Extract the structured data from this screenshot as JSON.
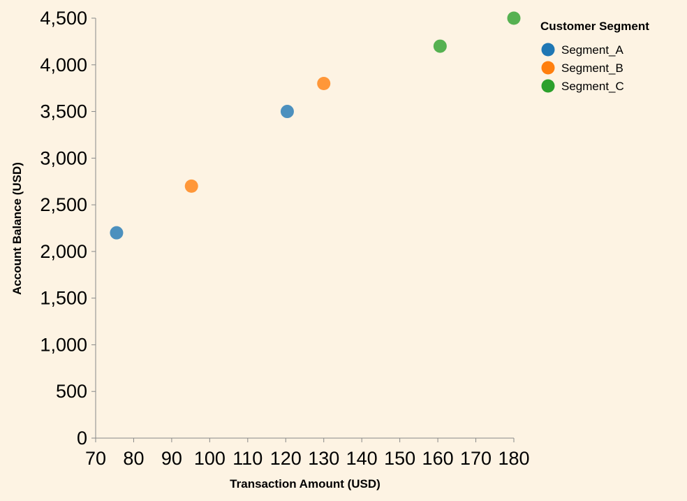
{
  "colors": {
    "background": "#fdf3e3",
    "axis": "#888888",
    "text": "#000000"
  },
  "chart_data": {
    "type": "scatter",
    "title": "",
    "xlabel": "Transaction Amount (USD)",
    "ylabel": "Account Balance (USD)",
    "xlim": [
      70,
      180
    ],
    "ylim": [
      0,
      4500
    ],
    "x_ticks": [
      70,
      80,
      90,
      100,
      110,
      120,
      130,
      140,
      150,
      160,
      170,
      180
    ],
    "x_tick_labels": [
      "70",
      "80",
      "90",
      "100",
      "110",
      "120",
      "130",
      "140",
      "150",
      "160",
      "170",
      "180"
    ],
    "y_ticks": [
      0,
      500,
      1000,
      1500,
      2000,
      2500,
      3000,
      3500,
      4000,
      4500
    ],
    "y_tick_labels": [
      "0",
      "500",
      "1,000",
      "1,500",
      "2,000",
      "2,500",
      "3,000",
      "3,500",
      "4,000",
      "4,500"
    ],
    "grid": false,
    "legend": {
      "title": "Customer Segment",
      "placement": "top-right"
    },
    "series": [
      {
        "name": "Segment_A",
        "color": "#1f77b4",
        "points": [
          {
            "x": 75.5,
            "y": 2200
          },
          {
            "x": 120.4,
            "y": 3500
          }
        ]
      },
      {
        "name": "Segment_B",
        "color": "#ff7f0e",
        "points": [
          {
            "x": 95.2,
            "y": 2700
          },
          {
            "x": 130.0,
            "y": 3800
          }
        ]
      },
      {
        "name": "Segment_C",
        "color": "#2ca02c",
        "points": [
          {
            "x": 160.6,
            "y": 4200
          },
          {
            "x": 180.0,
            "y": 4500
          }
        ]
      }
    ]
  }
}
